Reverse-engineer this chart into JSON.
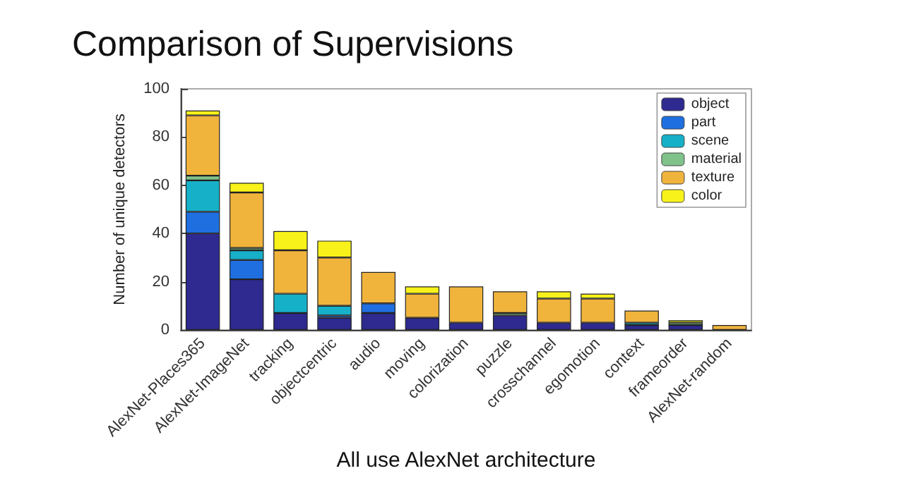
{
  "chart_data": {
    "type": "bar",
    "title": "Comparison of Supervisions",
    "xlabel": "All use AlexNet architecture",
    "ylabel": "Number of unique detectors",
    "categories": [
      "AlexNet-Places365",
      "AlexNet-ImageNet",
      "tracking",
      "objectcentric",
      "audio",
      "moving",
      "colorization",
      "puzzle",
      "crosschannel",
      "egomotion",
      "context",
      "frameorder",
      "AlexNet-random"
    ],
    "stacked": true,
    "series": [
      {
        "name": "object",
        "color": "#2e2a8f",
        "values": [
          40,
          21,
          7,
          5,
          7,
          5,
          3,
          6,
          3,
          3,
          2,
          2,
          0
        ]
      },
      {
        "name": "part",
        "color": "#1f6fe0",
        "values": [
          9,
          8,
          0,
          1,
          4,
          0,
          0,
          0,
          0,
          0,
          0,
          0,
          0
        ]
      },
      {
        "name": "scene",
        "color": "#16b0c8",
        "values": [
          13,
          4,
          8,
          4,
          0,
          0,
          0,
          0,
          0,
          0,
          1,
          0,
          0
        ]
      },
      {
        "name": "material",
        "color": "#7fc28a",
        "values": [
          2,
          1,
          0,
          0,
          0,
          0,
          0,
          1,
          0,
          0,
          0,
          1,
          0
        ]
      },
      {
        "name": "texture",
        "color": "#f0b43c",
        "values": [
          25,
          23,
          18,
          20,
          13,
          10,
          15,
          9,
          10,
          10,
          5,
          0,
          2
        ]
      },
      {
        "name": "color",
        "color": "#f8f21a",
        "values": [
          2,
          4,
          8,
          7,
          0,
          3,
          0,
          0,
          3,
          2,
          0,
          1,
          0
        ]
      }
    ],
    "ylim": [
      0,
      100
    ],
    "yticks": [
      0,
      20,
      40,
      60,
      80,
      100
    ],
    "grid": false,
    "legend": "top right"
  }
}
